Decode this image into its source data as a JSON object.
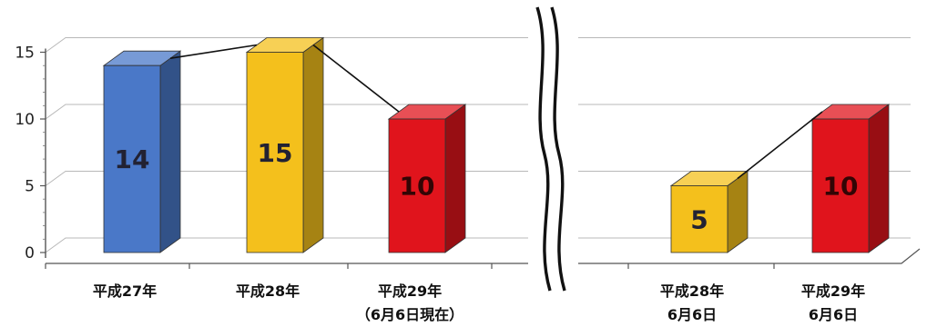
{
  "chart_data": {
    "type": "bar",
    "style": "3d-column",
    "ylim": [
      0,
      15
    ],
    "yticks": [
      "0",
      "5",
      "10",
      "15"
    ],
    "grid": true,
    "axis_break": true,
    "connector_lines": true,
    "categories": [
      {
        "label": "平成27年",
        "sub": ""
      },
      {
        "label": "平成28年",
        "sub": ""
      },
      {
        "label": "平成29年",
        "sub": "（6月6日現在）"
      },
      {
        "label": "平成28年",
        "sub": "6月6日"
      },
      {
        "label": "平成29年",
        "sub": "6月6日"
      }
    ],
    "values": [
      14,
      15,
      10,
      5,
      10
    ],
    "data_labels": [
      "14",
      "15",
      "10",
      "5",
      "10"
    ],
    "colors": [
      "#4a78c8",
      "#f4c01c",
      "#e0141c",
      "#f4c01c",
      "#e0141c"
    ]
  }
}
